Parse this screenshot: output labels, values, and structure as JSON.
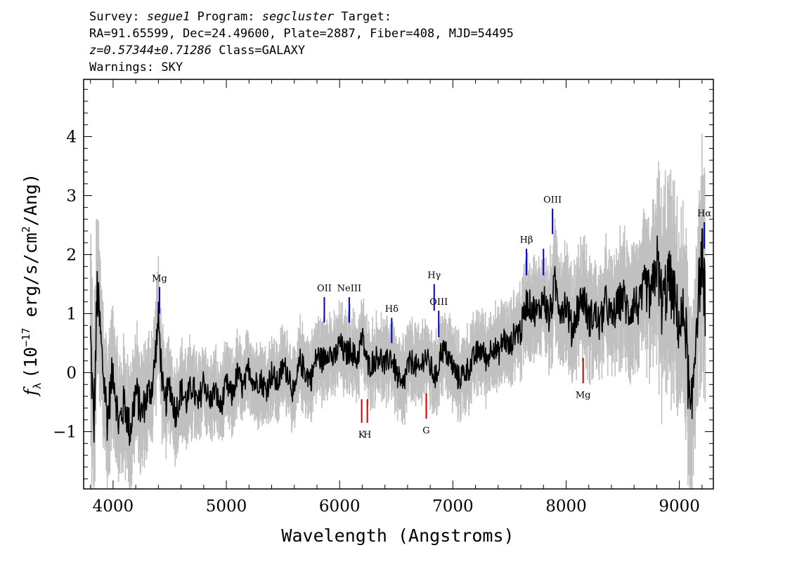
{
  "header": {
    "survey_label": "Survey:",
    "survey": "segue1",
    "program_label": "Program:",
    "program": "segcluster",
    "target_label": "Target:",
    "line2": "RA=91.65599, Dec=24.49600, Plate=2887, Fiber=408, MJD=54495",
    "redshift": "z=0.57344±0.71286",
    "class": "Class=GALAXY",
    "warnings": "Warnings: SKY"
  },
  "chart_data": {
    "type": "line",
    "title": "",
    "xlabel": "Wavelength (Angstroms)",
    "ylabel_prefix": "f",
    "ylabel_sub": "λ",
    "ylabel_units": "(10",
    "ylabel_exp": "−17",
    "ylabel_rest": " erg/s/cm",
    "ylabel_exp2": "2",
    "ylabel_tail": "/Ang)",
    "xlim": [
      3740,
      9300
    ],
    "ylim": [
      -1.97,
      4.97
    ],
    "xticks": [
      4000,
      5000,
      6000,
      7000,
      8000,
      9000
    ],
    "yticks": [
      -1,
      0,
      1,
      2,
      3,
      4
    ],
    "xtick_labels": [
      "4000",
      "5000",
      "6000",
      "7000",
      "8000",
      "9000"
    ],
    "ytick_labels": [
      "−1",
      "0",
      "1",
      "2",
      "3",
      "4"
    ],
    "colors": {
      "flux": "#000000",
      "error": "#c0c0c0",
      "emission": "#0000cc",
      "absorption": "#cc0000"
    },
    "series": [
      {
        "name": "flux",
        "x": [
          3800,
          3830,
          3860,
          3900,
          3950,
          4000,
          4050,
          4100,
          4150,
          4200,
          4250,
          4300,
          4350,
          4400,
          4450,
          4500,
          4550,
          4600,
          4650,
          4700,
          4750,
          4800,
          4850,
          4900,
          4950,
          5000,
          5050,
          5100,
          5150,
          5200,
          5250,
          5300,
          5350,
          5400,
          5450,
          5500,
          5550,
          5600,
          5650,
          5700,
          5750,
          5800,
          5850,
          5900,
          5950,
          6000,
          6050,
          6100,
          6150,
          6200,
          6250,
          6300,
          6350,
          6400,
          6450,
          6500,
          6550,
          6600,
          6650,
          6700,
          6750,
          6800,
          6850,
          6900,
          6950,
          7000,
          7050,
          7100,
          7150,
          7200,
          7250,
          7300,
          7350,
          7400,
          7450,
          7500,
          7550,
          7600,
          7650,
          7700,
          7750,
          7800,
          7850,
          7900,
          7950,
          8000,
          8050,
          8100,
          8150,
          8200,
          8250,
          8300,
          8350,
          8400,
          8450,
          8500,
          8550,
          8600,
          8650,
          8700,
          8750,
          8800,
          8850,
          8900,
          8950,
          9000,
          9050,
          9100,
          9150,
          9200,
          9230
        ],
        "values": [
          0.6,
          -1.0,
          1.4,
          0.3,
          -0.8,
          0.1,
          -0.9,
          -0.5,
          -1.0,
          -0.3,
          -0.7,
          -0.4,
          -0.2,
          0.9,
          -0.6,
          -0.2,
          -0.7,
          -0.3,
          -0.5,
          -0.2,
          -0.6,
          -0.1,
          -0.5,
          -0.3,
          -0.6,
          -0.2,
          -0.4,
          0.0,
          -0.3,
          0.1,
          -0.2,
          -0.1,
          -0.3,
          0.0,
          -0.2,
          0.1,
          0.0,
          -0.4,
          0.2,
          0.0,
          -0.1,
          0.3,
          0.2,
          0.4,
          0.2,
          0.5,
          0.3,
          0.4,
          0.2,
          0.6,
          0.1,
          0.2,
          0.3,
          0.1,
          0.3,
          0.0,
          -0.3,
          0.1,
          0.2,
          0.0,
          0.3,
          0.1,
          -0.1,
          0.4,
          0.3,
          0.1,
          -0.1,
          0.0,
          0.1,
          0.3,
          0.4,
          0.2,
          0.5,
          0.3,
          0.6,
          0.4,
          0.7,
          0.7,
          1.2,
          1.1,
          1.0,
          1.3,
          0.9,
          1.5,
          1.1,
          1.2,
          0.7,
          1.1,
          1.3,
          0.9,
          1.0,
          0.8,
          1.2,
          0.9,
          1.1,
          1.3,
          1.0,
          1.2,
          1.1,
          1.5,
          1.2,
          1.9,
          1.1,
          1.6,
          1.3,
          0.8,
          1.0,
          -1.0,
          0.9,
          2.0,
          1.1
        ]
      },
      {
        "name": "error",
        "sigma": [
          1.4,
          1.3,
          1.1,
          1.0,
          0.9,
          0.8,
          0.8,
          0.8,
          0.8,
          0.8,
          0.7,
          0.7,
          0.7,
          0.7,
          0.7,
          0.6,
          0.6,
          0.6,
          0.6,
          0.6,
          0.6,
          0.5,
          0.5,
          0.5,
          0.5,
          0.5,
          0.5,
          0.5,
          0.5,
          0.5,
          0.5,
          0.5,
          0.5,
          0.5,
          0.5,
          0.5,
          0.5,
          0.5,
          0.5,
          0.5,
          0.5,
          0.5,
          0.5,
          0.5,
          0.5,
          0.5,
          0.5,
          0.5,
          0.5,
          0.5,
          0.5,
          0.5,
          0.5,
          0.5,
          0.5,
          0.5,
          0.6,
          0.5,
          0.5,
          0.5,
          0.5,
          0.5,
          0.5,
          0.5,
          0.5,
          0.5,
          0.5,
          0.5,
          0.5,
          0.5,
          0.5,
          0.5,
          0.5,
          0.5,
          0.5,
          0.5,
          0.5,
          0.6,
          0.6,
          0.6,
          0.6,
          0.6,
          0.7,
          0.7,
          0.7,
          0.7,
          0.7,
          0.7,
          0.7,
          0.7,
          0.7,
          0.7,
          0.7,
          0.7,
          0.7,
          0.8,
          0.8,
          0.8,
          0.8,
          0.9,
          1.0,
          1.2,
          1.3,
          1.3,
          1.2,
          1.2,
          1.2,
          1.4,
          1.2,
          1.3,
          1.3
        ]
      }
    ],
    "emission_lines": [
      {
        "label": "Mg",
        "x": 4410,
        "y_bottom": 1.0,
        "y_top": 1.45,
        "label_y": 1.55
      },
      {
        "label": "OII",
        "x": 5865,
        "y_bottom": 0.85,
        "y_top": 1.28,
        "label_y": 1.38
      },
      {
        "label": "NeIII",
        "x": 6085,
        "y_bottom": 0.85,
        "y_top": 1.28,
        "label_y": 1.38
      },
      {
        "label": "Hδ",
        "x": 6460,
        "y_bottom": 0.5,
        "y_top": 0.93,
        "label_y": 1.03
      },
      {
        "label": "Hγ",
        "x": 6835,
        "y_bottom": 1.05,
        "y_top": 1.5,
        "label_y": 1.6
      },
      {
        "label": "OIII",
        "x": 6875,
        "y_bottom": 0.6,
        "y_top": 1.05,
        "label_y": 1.15
      },
      {
        "label": "Hβ",
        "x": 7650,
        "y_bottom": 1.65,
        "y_top": 2.1,
        "label_y": 2.2
      },
      {
        "label": "",
        "x": 7800,
        "y_bottom": 1.65,
        "y_top": 2.1,
        "label_y": 2.2
      },
      {
        "label": "OIII",
        "x": 7880,
        "y_bottom": 2.35,
        "y_top": 2.78,
        "label_y": 2.88
      },
      {
        "label": "Hα",
        "x": 9220,
        "y_bottom": 2.1,
        "y_top": 2.55,
        "label_y": 2.65
      }
    ],
    "absorption_lines": [
      {
        "label": "K",
        "x": 6195,
        "y_bottom": -0.85,
        "y_top": -0.45,
        "label_y": -1.1
      },
      {
        "label": "H",
        "x": 6245,
        "y_bottom": -0.85,
        "y_top": -0.45,
        "label_y": -1.1
      },
      {
        "label": "G",
        "x": 6765,
        "y_bottom": -0.78,
        "y_top": -0.35,
        "label_y": -1.03
      },
      {
        "label": "Mg",
        "x": 8150,
        "y_bottom": -0.18,
        "y_top": 0.25,
        "label_y": -0.43
      }
    ]
  }
}
